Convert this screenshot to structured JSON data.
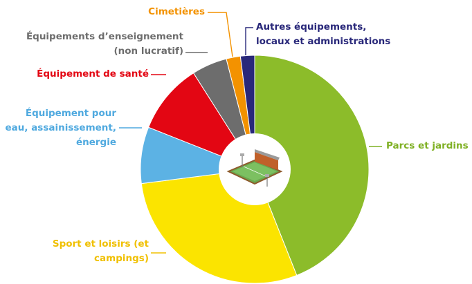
{
  "chart_data": {
    "type": "pie",
    "categories": [
      "Parcs et jardins",
      "Sport et loisirs (et campings)",
      "Équipement pour eau, assainissement, énergie",
      "Équipement de santé",
      "Équipements d’enseignement (non lucratif)",
      "Cimetières",
      "Autres équipements, locaux et administrations"
    ],
    "values": [
      44,
      29,
      8,
      10,
      5,
      2,
      2
    ],
    "colors": [
      "#8cbc2a",
      "#fbe400",
      "#5cb2e4",
      "#e30613",
      "#6d6d6d",
      "#f39200",
      "#29287a"
    ],
    "label_colors": [
      "#7fb024",
      "#f0c000",
      "#4fa9df",
      "#e30613",
      "#6d6d6d",
      "#f39200",
      "#29287a"
    ]
  }
}
